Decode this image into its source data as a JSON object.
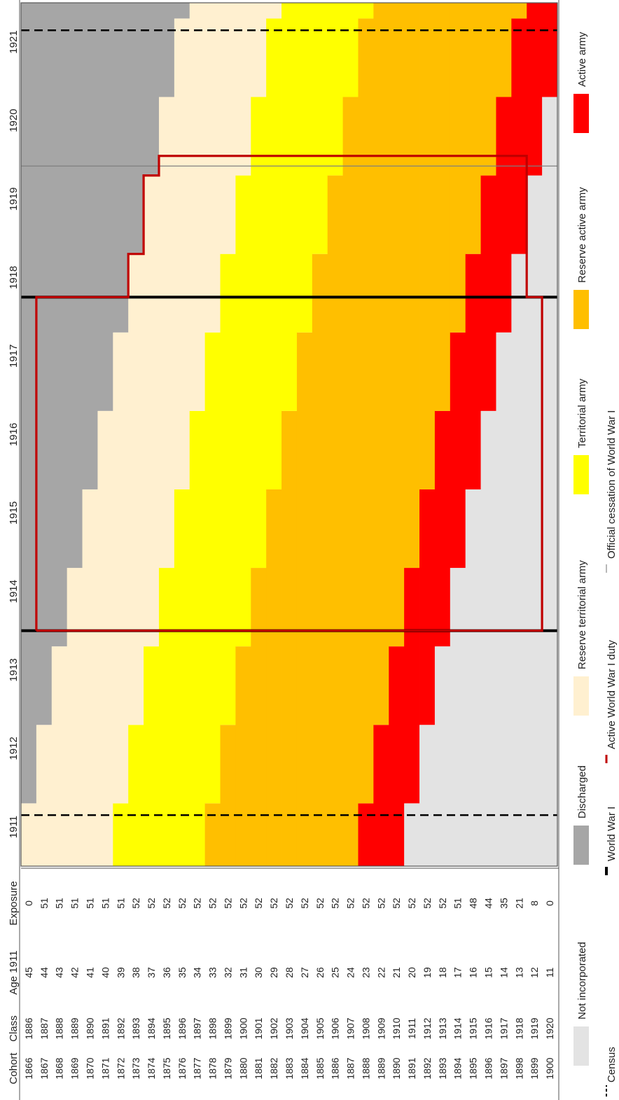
{
  "chart_data": {
    "type": "heatmap",
    "subtype": "military-status timeline by birth cohort (rotated 90 degrees)",
    "years": [
      "1911",
      "1912",
      "1913",
      "1914",
      "1915",
      "1916",
      "1917",
      "1918",
      "1919",
      "1920",
      "1921"
    ],
    "table_headers": {
      "cohort": "Cohort",
      "class": "Class",
      "age": "Age 1911",
      "exposure": "Exposure"
    },
    "cohorts": [
      {
        "cohort": "1866",
        "class": "1886",
        "age": "45",
        "exposure": "0"
      },
      {
        "cohort": "1867",
        "class": "1887",
        "age": "44",
        "exposure": "51"
      },
      {
        "cohort": "1868",
        "class": "1888",
        "age": "43",
        "exposure": "51"
      },
      {
        "cohort": "1869",
        "class": "1889",
        "age": "42",
        "exposure": "51"
      },
      {
        "cohort": "1870",
        "class": "1890",
        "age": "41",
        "exposure": "51"
      },
      {
        "cohort": "1871",
        "class": "1891",
        "age": "40",
        "exposure": "51"
      },
      {
        "cohort": "1872",
        "class": "1892",
        "age": "39",
        "exposure": "51"
      },
      {
        "cohort": "1873",
        "class": "1893",
        "age": "38",
        "exposure": "52"
      },
      {
        "cohort": "1874",
        "class": "1894",
        "age": "37",
        "exposure": "52"
      },
      {
        "cohort": "1875",
        "class": "1895",
        "age": "36",
        "exposure": "52"
      },
      {
        "cohort": "1876",
        "class": "1896",
        "age": "35",
        "exposure": "52"
      },
      {
        "cohort": "1877",
        "class": "1897",
        "age": "34",
        "exposure": "52"
      },
      {
        "cohort": "1878",
        "class": "1898",
        "age": "33",
        "exposure": "52"
      },
      {
        "cohort": "1879",
        "class": "1899",
        "age": "32",
        "exposure": "52"
      },
      {
        "cohort": "1880",
        "class": "1900",
        "age": "31",
        "exposure": "52"
      },
      {
        "cohort": "1881",
        "class": "1901",
        "age": "30",
        "exposure": "52"
      },
      {
        "cohort": "1882",
        "class": "1902",
        "age": "29",
        "exposure": "52"
      },
      {
        "cohort": "1883",
        "class": "1903",
        "age": "28",
        "exposure": "52"
      },
      {
        "cohort": "1884",
        "class": "1904",
        "age": "27",
        "exposure": "52"
      },
      {
        "cohort": "1885",
        "class": "1905",
        "age": "26",
        "exposure": "52"
      },
      {
        "cohort": "1886",
        "class": "1906",
        "age": "25",
        "exposure": "52"
      },
      {
        "cohort": "1887",
        "class": "1907",
        "age": "24",
        "exposure": "52"
      },
      {
        "cohort": "1888",
        "class": "1908",
        "age": "23",
        "exposure": "52"
      },
      {
        "cohort": "1889",
        "class": "1909",
        "age": "22",
        "exposure": "52"
      },
      {
        "cohort": "1890",
        "class": "1910",
        "age": "21",
        "exposure": "52"
      },
      {
        "cohort": "1891",
        "class": "1911",
        "age": "20",
        "exposure": "52"
      },
      {
        "cohort": "1892",
        "class": "1912",
        "age": "19",
        "exposure": "52"
      },
      {
        "cohort": "1893",
        "class": "1913",
        "age": "18",
        "exposure": "52"
      },
      {
        "cohort": "1894",
        "class": "1914",
        "age": "17",
        "exposure": "51"
      },
      {
        "cohort": "1895",
        "class": "1915",
        "age": "16",
        "exposure": "48"
      },
      {
        "cohort": "1896",
        "class": "1916",
        "age": "15",
        "exposure": "44"
      },
      {
        "cohort": "1897",
        "class": "1917",
        "age": "14",
        "exposure": "35"
      },
      {
        "cohort": "1898",
        "class": "1918",
        "age": "13",
        "exposure": "21"
      },
      {
        "cohort": "1899",
        "class": "1919",
        "age": "12",
        "exposure": "8"
      },
      {
        "cohort": "1900",
        "class": "1920",
        "age": "11",
        "exposure": "0"
      }
    ],
    "statuses": [
      {
        "key": "not_incorporated",
        "label": "Not incorporated",
        "color": "#E3E3E3"
      },
      {
        "key": "discharged",
        "label": "Discharged",
        "color": "#A6A6A6"
      },
      {
        "key": "reserve_territorial",
        "label": "Reserve territorial army",
        "color": "#FFF0D0"
      },
      {
        "key": "territorial",
        "label": "Territorial army",
        "color": "#FFFF00"
      },
      {
        "key": "reserve_active",
        "label": "Reserve active army",
        "color": "#FFBF00"
      },
      {
        "key": "active",
        "label": "Active army",
        "color": "#FF0000"
      }
    ],
    "status_by_class_year": "status of class C in year Y: active if 0<=Y-C<=2; reserve active if 3..12; territorial 13..18; reserve territorial 19..24; discharged >=25; not incorporated <0. Transitions occur in October (approx. 0.8 of year).",
    "events": [
      {
        "label": "Census",
        "style": "dashed black",
        "date": "1911.65"
      },
      {
        "label": "Census",
        "style": "dashed black",
        "date": "1921.65"
      },
      {
        "label": "World War I",
        "style": "solid black",
        "date": "1914.00"
      },
      {
        "label": "World War I",
        "style": "solid black",
        "date": "1918.25"
      },
      {
        "label": "Official cessation of World War I",
        "style": "thin grey",
        "date": "1919.92"
      }
    ],
    "active_wwi_duty": {
      "label": "Active World War I duty",
      "color": "#C00000",
      "start": "1914.00"
    },
    "legend_bottom": [
      {
        "key": "census",
        "label": "Census"
      },
      {
        "key": "wwi",
        "label": "World War I"
      },
      {
        "key": "active_wwi",
        "label": "Active World War I duty"
      },
      {
        "key": "cessation",
        "label": "Official cessation of World War I"
      }
    ],
    "legend_placement": "bottom (rotated)"
  }
}
